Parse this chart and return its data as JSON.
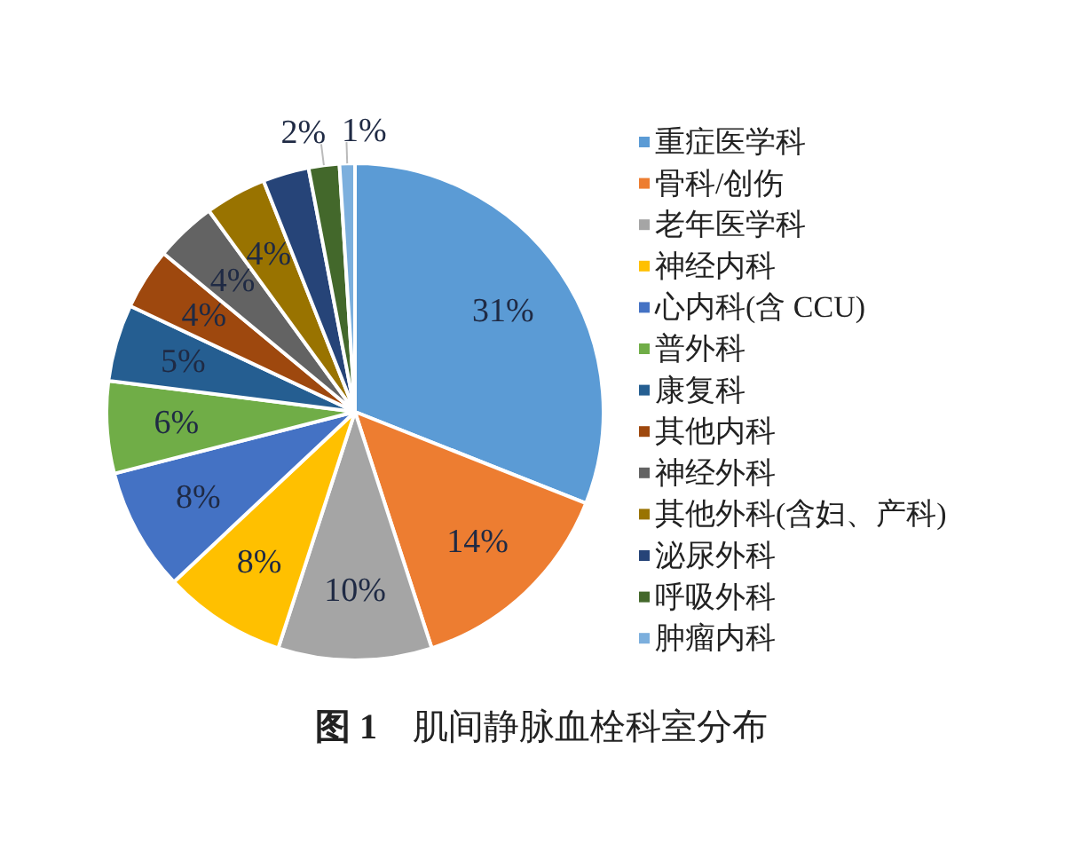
{
  "chart_data": {
    "type": "pie",
    "title": "**图 1**　肌间静脉血栓科室分布",
    "categories": [
      "重症医学科",
      "骨科/创伤",
      "老年医学科",
      "神经内科",
      "心内科(含 CCU)",
      "普外科",
      "康复科",
      "其他内科",
      "神经外科",
      "其他外科(含妇、产科)",
      "泌尿外科",
      "呼吸外科",
      "肿瘤内科"
    ],
    "values": [
      31,
      14,
      10,
      8,
      8,
      6,
      5,
      4,
      4,
      4,
      3,
      2,
      1
    ],
    "value_labels": [
      "31%",
      "14%",
      "10%",
      "8%",
      "8%",
      "6%",
      "5%",
      "4%",
      "4%",
      "4%",
      null,
      "2%",
      "1%"
    ],
    "colors": [
      "#5b9bd5",
      "#ed7d31",
      "#a5a5a5",
      "#ffc000",
      "#4472c4",
      "#70ad47",
      "#255e91",
      "#9e480e",
      "#636363",
      "#997300",
      "#264478",
      "#43682b",
      "#7cafdd"
    ],
    "legend": "right"
  }
}
